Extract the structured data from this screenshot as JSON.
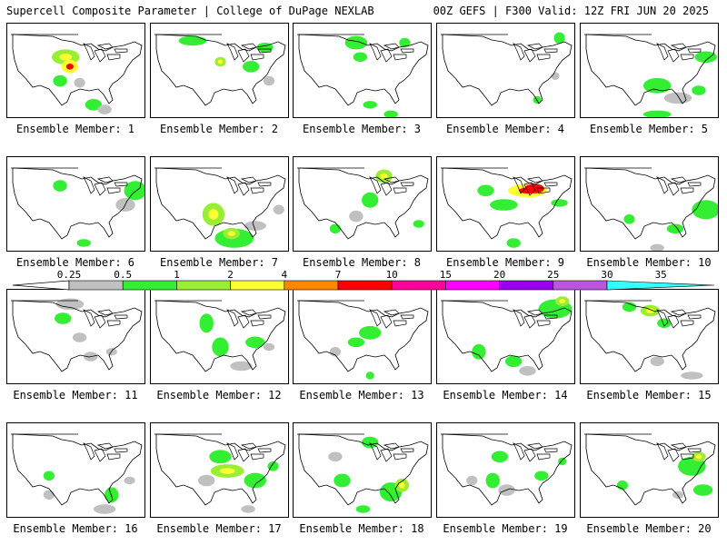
{
  "header": {
    "left_title": "Supercell Composite Parameter | College of DuPage NEXLAB",
    "right_title": "00Z GEFS | F300 Valid: 12Z FRI JUN 20 2025"
  },
  "panel_label_prefix": "Ensemble Member:",
  "members": [
    {
      "id": "1",
      "blobs": [
        [
          0.42,
          0.35,
          0.1,
          0.08,
          2
        ],
        [
          0.45,
          0.45,
          0.06,
          0.07,
          3
        ],
        [
          0.38,
          0.6,
          0.05,
          0.06,
          1
        ],
        [
          0.62,
          0.85,
          0.06,
          0.06,
          1
        ],
        [
          0.7,
          0.9,
          0.05,
          0.05,
          0
        ],
        [
          0.52,
          0.62,
          0.04,
          0.05,
          0
        ]
      ]
    },
    {
      "id": "2",
      "blobs": [
        [
          0.3,
          0.18,
          0.1,
          0.05,
          1
        ],
        [
          0.5,
          0.4,
          0.04,
          0.05,
          2
        ],
        [
          0.72,
          0.45,
          0.06,
          0.06,
          1
        ],
        [
          0.82,
          0.25,
          0.06,
          0.05,
          1
        ],
        [
          0.85,
          0.6,
          0.04,
          0.05,
          0
        ]
      ]
    },
    {
      "id": "3",
      "blobs": [
        [
          0.45,
          0.2,
          0.08,
          0.07,
          1
        ],
        [
          0.48,
          0.35,
          0.05,
          0.05,
          1
        ],
        [
          0.8,
          0.2,
          0.04,
          0.05,
          1
        ],
        [
          0.55,
          0.85,
          0.05,
          0.04,
          1
        ],
        [
          0.7,
          0.95,
          0.05,
          0.04,
          1
        ]
      ]
    },
    {
      "id": "4",
      "blobs": [
        [
          0.88,
          0.15,
          0.04,
          0.06,
          1
        ],
        [
          0.72,
          0.8,
          0.03,
          0.04,
          1
        ],
        [
          0.85,
          0.55,
          0.03,
          0.04,
          0
        ]
      ]
    },
    {
      "id": "5",
      "blobs": [
        [
          0.9,
          0.35,
          0.08,
          0.06,
          1
        ],
        [
          0.55,
          0.65,
          0.1,
          0.08,
          1
        ],
        [
          0.7,
          0.78,
          0.1,
          0.06,
          0
        ],
        [
          0.55,
          0.95,
          0.1,
          0.04,
          1
        ],
        [
          0.85,
          0.7,
          0.05,
          0.05,
          1
        ]
      ]
    },
    {
      "id": "6",
      "blobs": [
        [
          0.92,
          0.35,
          0.08,
          0.1,
          1
        ],
        [
          0.38,
          0.3,
          0.05,
          0.06,
          1
        ],
        [
          0.55,
          0.9,
          0.05,
          0.04,
          1
        ],
        [
          0.85,
          0.5,
          0.07,
          0.07,
          0
        ]
      ]
    },
    {
      "id": "7",
      "blobs": [
        [
          0.45,
          0.6,
          0.08,
          0.12,
          2
        ],
        [
          0.6,
          0.85,
          0.14,
          0.1,
          1
        ],
        [
          0.58,
          0.8,
          0.06,
          0.06,
          2
        ],
        [
          0.75,
          0.72,
          0.08,
          0.05,
          0
        ],
        [
          0.92,
          0.55,
          0.04,
          0.05,
          0
        ]
      ]
    },
    {
      "id": "8",
      "blobs": [
        [
          0.65,
          0.2,
          0.06,
          0.07,
          2
        ],
        [
          0.55,
          0.45,
          0.06,
          0.08,
          1
        ],
        [
          0.45,
          0.62,
          0.05,
          0.06,
          0
        ],
        [
          0.9,
          0.7,
          0.04,
          0.04,
          1
        ],
        [
          0.3,
          0.75,
          0.04,
          0.05,
          1
        ]
      ]
    },
    {
      "id": "9",
      "blobs": [
        [
          0.65,
          0.35,
          0.14,
          0.07,
          3
        ],
        [
          0.7,
          0.33,
          0.07,
          0.05,
          4
        ],
        [
          0.48,
          0.5,
          0.1,
          0.06,
          1
        ],
        [
          0.88,
          0.48,
          0.06,
          0.04,
          1
        ],
        [
          0.35,
          0.35,
          0.06,
          0.06,
          1
        ],
        [
          0.55,
          0.9,
          0.05,
          0.05,
          1
        ]
      ]
    },
    {
      "id": "10",
      "blobs": [
        [
          0.9,
          0.55,
          0.1,
          0.1,
          1
        ],
        [
          0.35,
          0.65,
          0.04,
          0.05,
          1
        ],
        [
          0.68,
          0.75,
          0.06,
          0.05,
          1
        ],
        [
          0.55,
          0.95,
          0.05,
          0.04,
          0
        ]
      ]
    },
    {
      "id": "11",
      "blobs": [
        [
          0.45,
          0.15,
          0.1,
          0.06,
          0
        ],
        [
          0.4,
          0.3,
          0.06,
          0.06,
          1
        ],
        [
          0.52,
          0.5,
          0.05,
          0.05,
          0
        ],
        [
          0.6,
          0.7,
          0.05,
          0.05,
          0
        ],
        [
          0.75,
          0.65,
          0.04,
          0.04,
          0
        ]
      ]
    },
    {
      "id": "12",
      "blobs": [
        [
          0.4,
          0.35,
          0.05,
          0.1,
          1
        ],
        [
          0.5,
          0.6,
          0.06,
          0.1,
          1
        ],
        [
          0.75,
          0.55,
          0.07,
          0.06,
          1
        ],
        [
          0.65,
          0.8,
          0.08,
          0.05,
          0
        ],
        [
          0.85,
          0.6,
          0.04,
          0.04,
          0
        ]
      ]
    },
    {
      "id": "13",
      "blobs": [
        [
          0.55,
          0.45,
          0.08,
          0.07,
          1
        ],
        [
          0.45,
          0.55,
          0.06,
          0.05,
          1
        ],
        [
          0.3,
          0.65,
          0.04,
          0.05,
          0
        ],
        [
          0.55,
          0.9,
          0.03,
          0.04,
          1
        ]
      ]
    },
    {
      "id": "14",
      "blobs": [
        [
          0.85,
          0.2,
          0.12,
          0.1,
          1
        ],
        [
          0.9,
          0.12,
          0.05,
          0.05,
          2
        ],
        [
          0.3,
          0.65,
          0.05,
          0.08,
          1
        ],
        [
          0.55,
          0.75,
          0.06,
          0.06,
          1
        ],
        [
          0.65,
          0.85,
          0.06,
          0.05,
          0
        ]
      ]
    },
    {
      "id": "15",
      "blobs": [
        [
          0.5,
          0.22,
          0.07,
          0.06,
          2
        ],
        [
          0.35,
          0.18,
          0.05,
          0.05,
          1
        ],
        [
          0.6,
          0.35,
          0.05,
          0.05,
          1
        ],
        [
          0.55,
          0.75,
          0.05,
          0.05,
          0
        ],
        [
          0.8,
          0.9,
          0.08,
          0.04,
          0
        ]
      ]
    },
    {
      "id": "16",
      "blobs": [
        [
          0.3,
          0.55,
          0.04,
          0.05,
          1
        ],
        [
          0.75,
          0.75,
          0.05,
          0.08,
          1
        ],
        [
          0.7,
          0.9,
          0.08,
          0.05,
          0
        ],
        [
          0.3,
          0.75,
          0.04,
          0.05,
          0
        ],
        [
          0.88,
          0.6,
          0.04,
          0.04,
          0
        ]
      ]
    },
    {
      "id": "17",
      "blobs": [
        [
          0.55,
          0.5,
          0.12,
          0.07,
          2
        ],
        [
          0.5,
          0.35,
          0.08,
          0.07,
          1
        ],
        [
          0.75,
          0.6,
          0.08,
          0.08,
          1
        ],
        [
          0.4,
          0.6,
          0.06,
          0.06,
          0
        ],
        [
          0.88,
          0.45,
          0.04,
          0.05,
          1
        ],
        [
          0.7,
          0.9,
          0.05,
          0.04,
          0
        ]
      ]
    },
    {
      "id": "18",
      "blobs": [
        [
          0.55,
          0.2,
          0.06,
          0.06,
          1
        ],
        [
          0.35,
          0.6,
          0.06,
          0.07,
          1
        ],
        [
          0.7,
          0.72,
          0.08,
          0.1,
          1
        ],
        [
          0.78,
          0.65,
          0.05,
          0.07,
          2
        ],
        [
          0.3,
          0.35,
          0.05,
          0.05,
          0
        ],
        [
          0.5,
          0.9,
          0.05,
          0.04,
          1
        ]
      ]
    },
    {
      "id": "19",
      "blobs": [
        [
          0.45,
          0.35,
          0.06,
          0.06,
          1
        ],
        [
          0.4,
          0.6,
          0.05,
          0.08,
          1
        ],
        [
          0.5,
          0.7,
          0.06,
          0.06,
          0
        ],
        [
          0.75,
          0.55,
          0.05,
          0.05,
          1
        ],
        [
          0.25,
          0.6,
          0.04,
          0.05,
          0
        ],
        [
          0.9,
          0.4,
          0.03,
          0.04,
          1
        ]
      ]
    },
    {
      "id": "20",
      "blobs": [
        [
          0.8,
          0.45,
          0.1,
          0.1,
          1
        ],
        [
          0.85,
          0.35,
          0.05,
          0.05,
          2
        ],
        [
          0.88,
          0.7,
          0.07,
          0.06,
          1
        ],
        [
          0.3,
          0.65,
          0.04,
          0.05,
          1
        ],
        [
          0.7,
          0.75,
          0.04,
          0.04,
          0
        ]
      ]
    }
  ],
  "colorbar": {
    "colors": [
      "#c0c0c0",
      "#33ee33",
      "#99ee33",
      "#ffff33",
      "#ff8800",
      "#ff0000",
      "#ff0099",
      "#ff00ff",
      "#9900ee",
      "#bb55dd",
      "#33ffff"
    ],
    "end_left": "#ffffff",
    "levels": [
      "0.25",
      "0.5",
      "1",
      "2",
      "4",
      "7",
      "10",
      "15",
      "20",
      "25",
      "30",
      "35"
    ]
  },
  "map_colors": {
    "outline": "#000000",
    "fill_levels": [
      "#c0c0c0",
      "#33ee33",
      "#99ee33",
      "#ffff33",
      "#ff0000"
    ]
  }
}
